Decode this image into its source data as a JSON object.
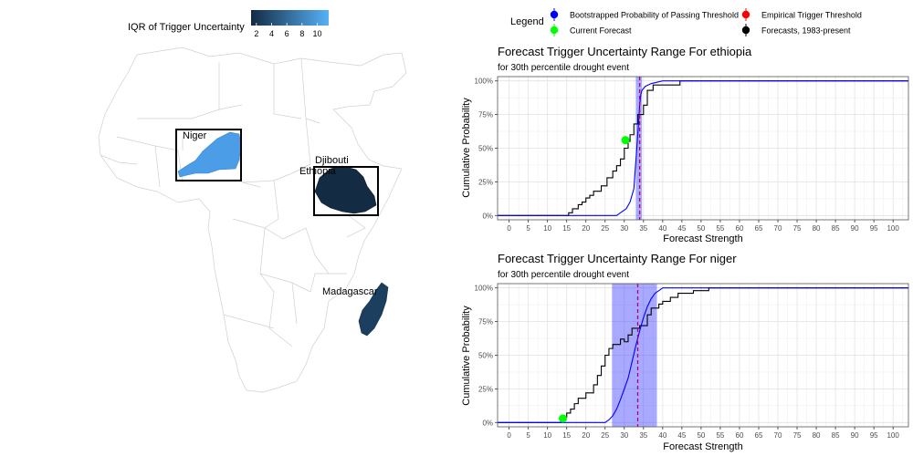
{
  "map": {
    "colorbar": {
      "title": "IQR of Trigger Uncertainty",
      "ticks": [
        "2",
        "4",
        "6",
        "8",
        "10"
      ],
      "tick_values": [
        2,
        4,
        6,
        8,
        10
      ],
      "min": 1.3,
      "max": 11.5,
      "low_color": "#132B43",
      "high_color": "#56B1F7"
    },
    "labels": {
      "niger": "Niger",
      "djibouti": "Djibouti",
      "ethiopia": "Ethiopia",
      "madagascar": "Madagascar"
    },
    "region_colors": {
      "niger": "#4A9DE6",
      "ethiopia": "#132B43",
      "madagascar": "#1C3F60"
    }
  },
  "legend": {
    "title": "Legend",
    "items": [
      {
        "label": "Bootstrapped Probability of Passing Threshold",
        "color": "#0000FF"
      },
      {
        "label": "Empirical Trigger Threshold",
        "color": "#FF0000"
      },
      {
        "label": "Current Forecast",
        "color": "#00FF00"
      },
      {
        "label": "Forecasts, 1983-present",
        "color": "#000000"
      }
    ]
  },
  "chart_data": [
    {
      "type": "line",
      "title": "Forecast Trigger Uncertainty Range For ethiopia",
      "subtitle": "for 30th percentile drought event",
      "xlabel": "Forecast Strength",
      "ylabel": "Cumulative Probability",
      "xlim": [
        -3,
        104
      ],
      "ylim": [
        0,
        1
      ],
      "x_ticks": [
        0,
        5,
        10,
        15,
        20,
        25,
        30,
        35,
        40,
        45,
        50,
        55,
        60,
        65,
        70,
        75,
        80,
        85,
        90,
        95,
        100
      ],
      "y_ticks": [
        "0%",
        "25%",
        "50%",
        "75%",
        "100%"
      ],
      "y_tick_values": [
        0,
        0.25,
        0.5,
        0.75,
        1
      ],
      "threshold": 34,
      "band": [
        33,
        34.6
      ],
      "current_forecast": {
        "x": 30.3,
        "y": 0.56
      },
      "series": [
        {
          "name": "Forecasts, 1983-present",
          "color": "#000000",
          "points": [
            [
              -3,
              0
            ],
            [
              15.5,
              0
            ],
            [
              15.5,
              0.02
            ],
            [
              16.5,
              0.02
            ],
            [
              16.5,
              0.05
            ],
            [
              18,
              0.05
            ],
            [
              18,
              0.08
            ],
            [
              19,
              0.08
            ],
            [
              19,
              0.1
            ],
            [
              20,
              0.1
            ],
            [
              20,
              0.13
            ],
            [
              21,
              0.13
            ],
            [
              21,
              0.15
            ],
            [
              22,
              0.15
            ],
            [
              22,
              0.18
            ],
            [
              24,
              0.18
            ],
            [
              24,
              0.22
            ],
            [
              25.5,
              0.22
            ],
            [
              25.5,
              0.28
            ],
            [
              27,
              0.28
            ],
            [
              27,
              0.33
            ],
            [
              28,
              0.33
            ],
            [
              28,
              0.37
            ],
            [
              29,
              0.37
            ],
            [
              29,
              0.42
            ],
            [
              30,
              0.42
            ],
            [
              30,
              0.5
            ],
            [
              31,
              0.5
            ],
            [
              31,
              0.55
            ],
            [
              31.5,
              0.55
            ],
            [
              31.5,
              0.6
            ],
            [
              32.5,
              0.6
            ],
            [
              32.5,
              0.68
            ],
            [
              33.5,
              0.68
            ],
            [
              33.5,
              0.75
            ],
            [
              35,
              0.75
            ],
            [
              35,
              0.82
            ],
            [
              36,
              0.82
            ],
            [
              36,
              0.93
            ],
            [
              37.5,
              0.93
            ],
            [
              37.5,
              0.97
            ],
            [
              44.5,
              0.97
            ],
            [
              44.5,
              1
            ],
            [
              104,
              1
            ]
          ]
        },
        {
          "name": "Bootstrapped Probability of Passing Threshold",
          "color": "#0000FF",
          "points": [
            [
              -3,
              0
            ],
            [
              28,
              0
            ],
            [
              28.5,
              0.01
            ],
            [
              29.5,
              0.03
            ],
            [
              30.5,
              0.05
            ],
            [
              31.5,
              0.1
            ],
            [
              32.5,
              0.2
            ],
            [
              33,
              0.4
            ],
            [
              33.5,
              0.6
            ],
            [
              33.8,
              0.72
            ],
            [
              34,
              0.82
            ],
            [
              34.3,
              0.9
            ],
            [
              34.6,
              0.93
            ],
            [
              35.5,
              0.96
            ],
            [
              37,
              0.98
            ],
            [
              40,
              1
            ],
            [
              104,
              1
            ]
          ]
        }
      ]
    },
    {
      "type": "line",
      "title": "Forecast Trigger Uncertainty Range For niger",
      "subtitle": "for 30th percentile drought event",
      "xlabel": "Forecast Strength",
      "ylabel": "Cumulative Probability",
      "xlim": [
        -3,
        104
      ],
      "ylim": [
        0,
        1
      ],
      "x_ticks": [
        0,
        5,
        10,
        15,
        20,
        25,
        30,
        35,
        40,
        45,
        50,
        55,
        60,
        65,
        70,
        75,
        80,
        85,
        90,
        95,
        100
      ],
      "y_ticks": [
        "0%",
        "25%",
        "50%",
        "75%",
        "100%"
      ],
      "y_tick_values": [
        0,
        0.25,
        0.5,
        0.75,
        1
      ],
      "threshold": 33.5,
      "band": [
        26.8,
        38.5
      ],
      "current_forecast": {
        "x": 14,
        "y": 0.03
      },
      "series": [
        {
          "name": "Forecasts, 1983-present",
          "color": "#000000",
          "points": [
            [
              -3,
              0
            ],
            [
              13.5,
              0
            ],
            [
              13.5,
              0.04
            ],
            [
              15,
              0.04
            ],
            [
              15,
              0.07
            ],
            [
              16,
              0.07
            ],
            [
              16,
              0.1
            ],
            [
              17,
              0.1
            ],
            [
              17,
              0.14
            ],
            [
              18,
              0.14
            ],
            [
              18,
              0.18
            ],
            [
              20,
              0.18
            ],
            [
              20,
              0.22
            ],
            [
              22,
              0.22
            ],
            [
              22,
              0.28
            ],
            [
              23,
              0.28
            ],
            [
              23,
              0.35
            ],
            [
              24,
              0.35
            ],
            [
              24,
              0.42
            ],
            [
              25,
              0.42
            ],
            [
              25,
              0.5
            ],
            [
              26,
              0.5
            ],
            [
              26,
              0.55
            ],
            [
              27,
              0.55
            ],
            [
              27,
              0.58
            ],
            [
              29,
              0.58
            ],
            [
              29,
              0.62
            ],
            [
              30,
              0.62
            ],
            [
              30,
              0.6
            ],
            [
              31,
              0.6
            ],
            [
              31,
              0.65
            ],
            [
              32,
              0.65
            ],
            [
              32,
              0.7
            ],
            [
              34,
              0.7
            ],
            [
              34,
              0.72
            ],
            [
              36,
              0.72
            ],
            [
              36,
              0.8
            ],
            [
              37,
              0.8
            ],
            [
              37,
              0.85
            ],
            [
              39,
              0.85
            ],
            [
              39,
              0.88
            ],
            [
              40,
              0.88
            ],
            [
              40,
              0.9
            ],
            [
              42,
              0.9
            ],
            [
              42,
              0.93
            ],
            [
              44,
              0.93
            ],
            [
              44,
              0.96
            ],
            [
              48,
              0.96
            ],
            [
              48,
              0.98
            ],
            [
              52,
              0.98
            ],
            [
              52,
              1
            ],
            [
              104,
              1
            ]
          ]
        },
        {
          "name": "Bootstrapped Probability of Passing Threshold",
          "color": "#0000FF",
          "points": [
            [
              -3,
              0
            ],
            [
              25,
              0
            ],
            [
              26,
              0.02
            ],
            [
              27,
              0.05
            ],
            [
              28,
              0.1
            ],
            [
              29,
              0.17
            ],
            [
              30,
              0.25
            ],
            [
              31,
              0.33
            ],
            [
              32,
              0.45
            ],
            [
              33,
              0.57
            ],
            [
              34,
              0.68
            ],
            [
              35,
              0.78
            ],
            [
              36,
              0.86
            ],
            [
              37,
              0.92
            ],
            [
              38,
              0.96
            ],
            [
              39,
              0.98
            ],
            [
              40,
              1
            ],
            [
              104,
              1
            ]
          ]
        }
      ]
    }
  ]
}
